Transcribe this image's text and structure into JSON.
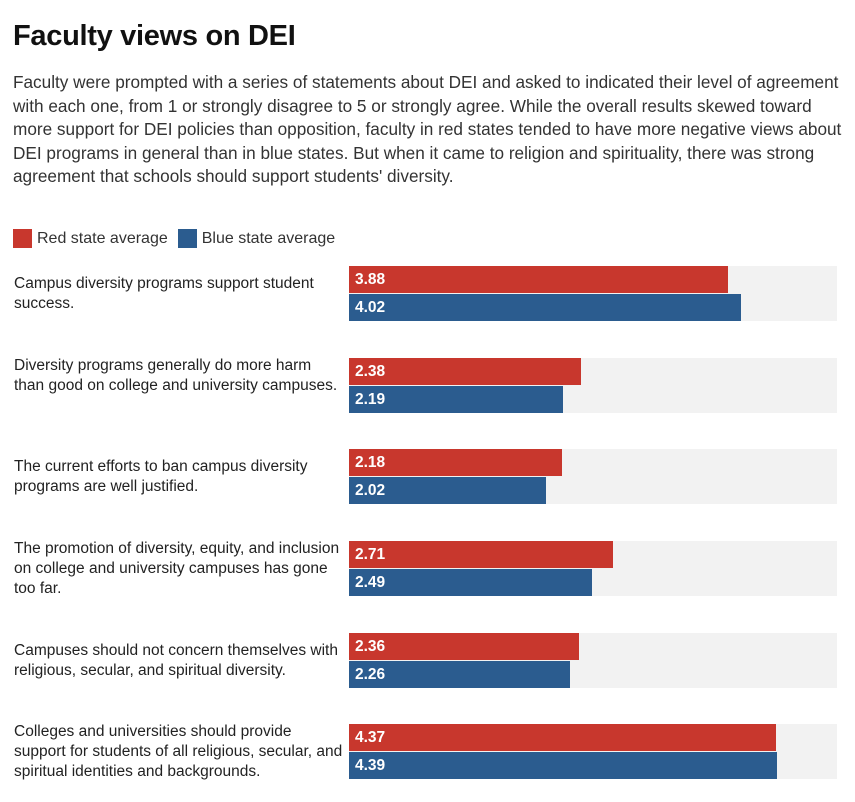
{
  "title": "Faculty views on DEI",
  "subtitle": "Faculty were prompted with a series of statements about DEI and asked to indicated their level of agreement with each one, from 1 or strongly disagree to 5 or strongly agree. While the overall results skewed toward more support for DEI policies than opposition, faculty in red states tended to have more negative views about DEI programs in general than in blue states. But when it came to religion and spirituality, there was strong agreement that schools should support students' diversity.",
  "colors": {
    "red": "#C8372D",
    "blue": "#2B5C8F",
    "track": "#F2F2F2"
  },
  "chart_data": {
    "type": "bar",
    "orientation": "horizontal",
    "title": "Faculty views on DEI",
    "xlim": [
      0,
      5
    ],
    "legend": "top-left",
    "categories": [
      "Campus diversity programs support student success.",
      "Diversity programs generally do more harm than good on college and university campuses.",
      "The current efforts to ban campus diversity programs are well justified.",
      "The promotion of diversity, equity, and inclusion on college and university campuses has gone too far.",
      "Campuses should not concern themselves with religious, secular, and spiritual diversity.",
      "Colleges and universities should provide support for students of all religious, secular, and spiritual identities and backgrounds."
    ],
    "series": [
      {
        "name": "Red state average",
        "color": "#C8372D",
        "values": [
          3.88,
          2.38,
          2.18,
          2.71,
          2.36,
          4.37
        ]
      },
      {
        "name": "Blue state average",
        "color": "#2B5C8F",
        "values": [
          4.02,
          2.19,
          2.02,
          2.49,
          2.26,
          4.39
        ]
      }
    ]
  }
}
